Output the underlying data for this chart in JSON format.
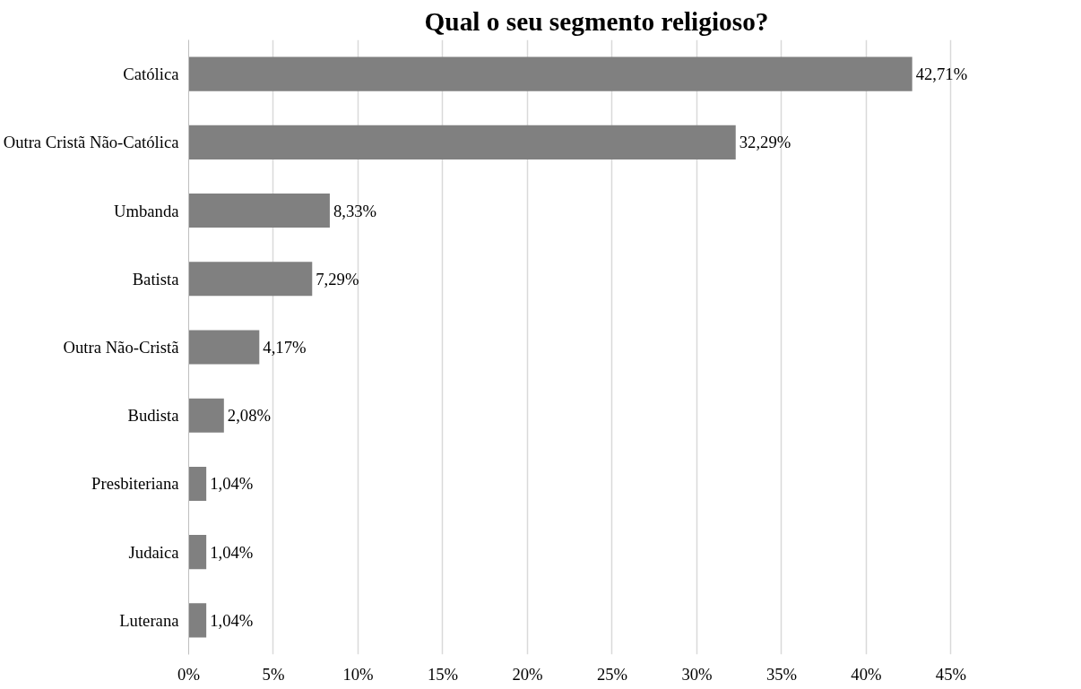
{
  "chart_data": {
    "type": "bar",
    "orientation": "horizontal",
    "title": "Qual o seu segmento religioso?",
    "categories": [
      "Católica",
      "Outra Cristã Não-Católica",
      "Umbanda",
      "Batista",
      "Outra Não-Cristã",
      "Budista",
      "Presbiteriana",
      "Judaica",
      "Luterana"
    ],
    "values": [
      42.71,
      32.29,
      8.33,
      7.29,
      4.17,
      2.08,
      1.04,
      1.04,
      1.04
    ],
    "value_labels": [
      "42,71%",
      "32,29%",
      "8,33%",
      "7,29%",
      "4,17%",
      "2,08%",
      "1,04%",
      "1,04%",
      "1,04%"
    ],
    "color": "#808080",
    "xlim": [
      0,
      45
    ],
    "xticks": [
      {
        "value": 0,
        "label": "0%"
      },
      {
        "value": 5,
        "label": "5%"
      },
      {
        "value": 10,
        "label": "10%"
      },
      {
        "value": 15,
        "label": "15%"
      },
      {
        "value": 20,
        "label": "20%"
      },
      {
        "value": 25,
        "label": "25%"
      },
      {
        "value": 30,
        "label": "30%"
      },
      {
        "value": 35,
        "label": "35%"
      },
      {
        "value": 40,
        "label": "40%"
      },
      {
        "value": 45,
        "label": "45%"
      }
    ],
    "grid": "x"
  }
}
